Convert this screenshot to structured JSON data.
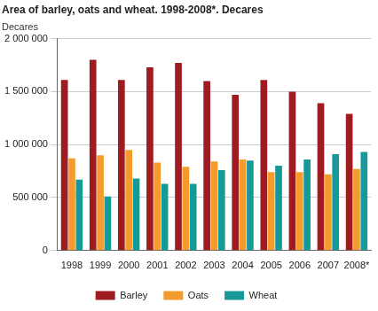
{
  "chart_data": {
    "type": "bar",
    "title": "Area of barley, oats and wheat. 1998-2008*. Decares",
    "y_label": "Decares",
    "categories": [
      "1998",
      "1999",
      "2000",
      "2001",
      "2002",
      "2003",
      "2004",
      "2005",
      "2006",
      "2007",
      "2008*"
    ],
    "series": [
      {
        "name": "Barley",
        "color": "#9e1b20",
        "values": [
          1610000,
          1800000,
          1610000,
          1730000,
          1770000,
          1600000,
          1470000,
          1610000,
          1500000,
          1390000,
          1290000
        ]
      },
      {
        "name": "Oats",
        "color": "#f39b2d",
        "values": [
          870000,
          900000,
          950000,
          830000,
          790000,
          840000,
          860000,
          740000,
          740000,
          720000,
          770000
        ]
      },
      {
        "name": "Wheat",
        "color": "#17999a",
        "values": [
          670000,
          510000,
          680000,
          630000,
          630000,
          760000,
          850000,
          800000,
          860000,
          910000,
          930000
        ]
      }
    ],
    "ylim": [
      0,
      2000000
    ],
    "yticks": [
      0,
      {
        "value": 500000,
        "label": "500 000"
      },
      {
        "value": 1000000,
        "label": "1 000 000"
      },
      {
        "value": 1500000,
        "label": "1 500 000"
      },
      {
        "value": 2000000,
        "label": "2 000 000"
      }
    ],
    "grid": true,
    "legend": "bottom"
  }
}
